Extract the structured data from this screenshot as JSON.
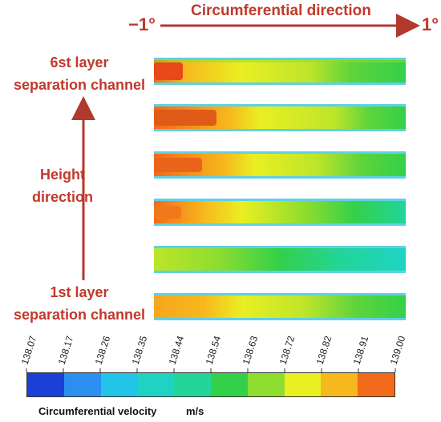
{
  "header": {
    "title": "Circumferential direction",
    "start_angle": "−1°",
    "end_angle": "1°"
  },
  "labels": {
    "top_layer_line1": "6st layer",
    "top_layer_line2": "separation channel",
    "height_line1": "Height",
    "height_line2": "direction",
    "bottom_layer_line1": "1st layer",
    "bottom_layer_line2": "separation channel"
  },
  "colorbar": {
    "title": "Circumferential velocity",
    "unit": "m/s",
    "ticks": [
      "138.07",
      "138.17",
      "138.26",
      "138.35",
      "138.44",
      "138.54",
      "138.63",
      "138.72",
      "138.82",
      "138.91",
      "139.00"
    ],
    "colors": [
      "#1c3fd6",
      "#2b8ff0",
      "#22c4e8",
      "#1fd3c4",
      "#22d59a",
      "#33d04a",
      "#8fdd2e",
      "#e9ef22",
      "#f7b81d",
      "#f26a1a"
    ]
  },
  "channels": [
    {
      "layer": "6"
    },
    {
      "layer": "5"
    },
    {
      "layer": "4"
    },
    {
      "layer": "3"
    },
    {
      "layer": "2"
    },
    {
      "layer": "1"
    }
  ],
  "colors": {
    "accent_red": "#c0392b",
    "band_border": "#5fd0e8"
  }
}
